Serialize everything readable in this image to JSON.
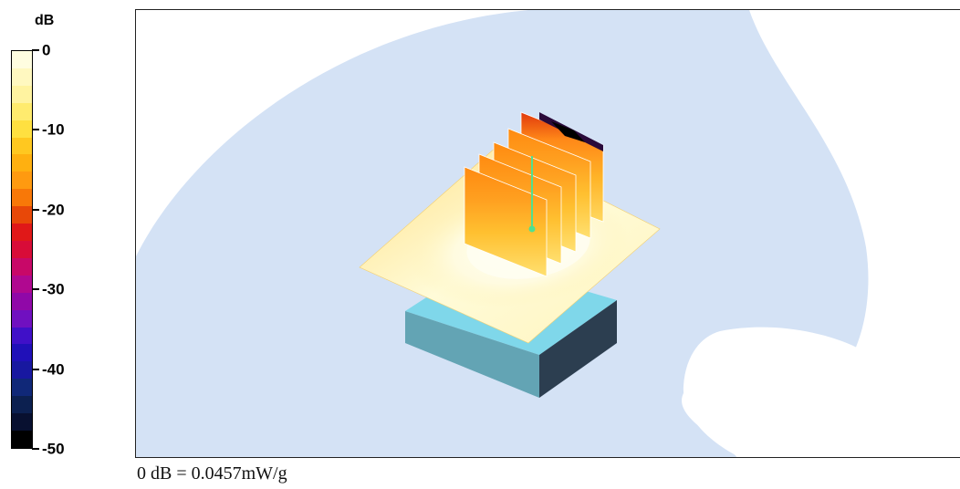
{
  "chart_data": {
    "type": "heatmap",
    "title": "",
    "colorbar": {
      "unit": "dB",
      "range": [
        -50,
        0
      ],
      "ticks": [
        {
          "value": 0,
          "label": "0"
        },
        {
          "value": -10,
          "label": "-10"
        },
        {
          "value": -20,
          "label": "-20"
        },
        {
          "value": -30,
          "label": "-30"
        },
        {
          "value": -40,
          "label": "-40"
        },
        {
          "value": -50,
          "label": "-50"
        }
      ],
      "colors": [
        "#fffde0",
        "#fff8c0",
        "#fff3a0",
        "#ffeb6e",
        "#ffe040",
        "#ffc820",
        "#ffb010",
        "#ff9a10",
        "#f87808",
        "#e84808",
        "#e01818",
        "#d80c38",
        "#c80868",
        "#b00890",
        "#9008a8",
        "#7010c0",
        "#4010c8",
        "#2010b8",
        "#1818a0",
        "#102878",
        "#0c2050",
        "#081030",
        "#000000"
      ]
    },
    "reference": "0 dB = 0.0457mW/g"
  }
}
